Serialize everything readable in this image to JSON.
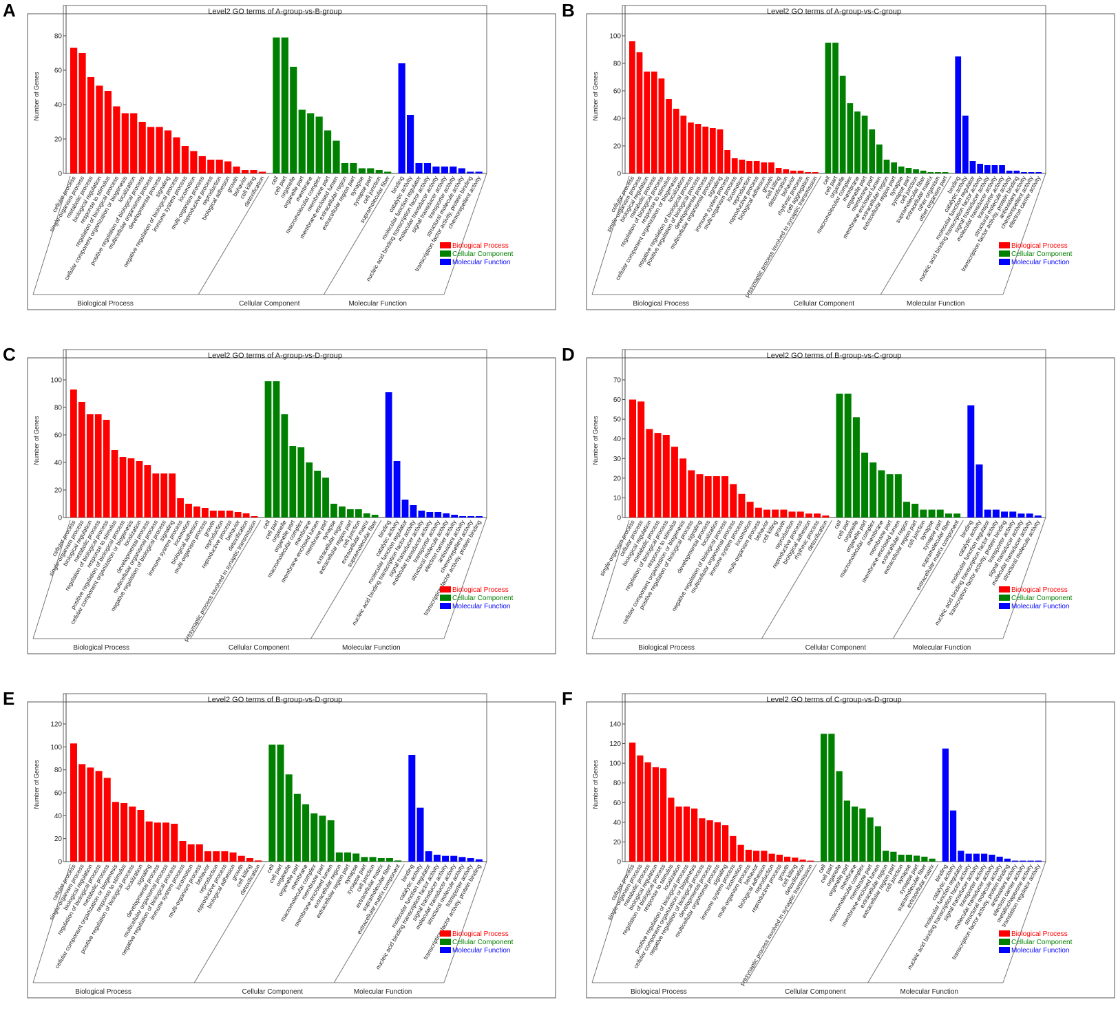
{
  "colors": {
    "bp": "#ff0000",
    "cc": "#008000",
    "mf": "#0000ff",
    "frame": "#555555"
  },
  "legend": [
    "Biological Process",
    "Cellular Component",
    "Molecular Function"
  ],
  "group_labels": [
    "Biological Process",
    "Cellular Component",
    "Molecular Function"
  ],
  "chart_data": [
    {
      "panel": "A",
      "type": "bar",
      "title": "Level2 GO terms of A-group-vs-B-group",
      "ylabel": "Number of Genes",
      "ylim": [
        0,
        80
      ],
      "yticks": [
        0,
        20,
        40,
        60,
        80
      ],
      "bp": {
        "categories": [
          "cellular process",
          "single-organism process",
          "metabolic process",
          "biological regulation",
          "response to stimulus",
          "regulation of biological process",
          "cellular component organization or biogenesis",
          "localization",
          "positive regulation of biological process",
          "multicellular organismal process",
          "developmental process",
          "signaling",
          "negative regulation of biological process",
          "immune system process",
          "locomotion",
          "multi-organism process",
          "reproductive process",
          "reproduction",
          "biological adhesion",
          "growth",
          "behavior",
          "cell killing",
          "detoxification"
        ],
        "values": [
          73,
          70,
          56,
          51,
          48,
          39,
          35,
          35,
          30,
          27,
          27,
          25,
          21,
          16,
          13,
          10,
          8,
          8,
          7,
          4,
          2,
          2,
          1
        ]
      },
      "cc": {
        "categories": [
          "cell",
          "cell part",
          "organelle",
          "organelle part",
          "membrane",
          "macromolecular complex",
          "membrane part",
          "membrane-enclosed lumen",
          "extracellular region",
          "extracellular region part",
          "synapse",
          "synapse part",
          "cell junction",
          "supramolecular fiber"
        ],
        "values": [
          79,
          79,
          62,
          37,
          35,
          33,
          25,
          19,
          6,
          6,
          3,
          3,
          2,
          1
        ]
      },
      "mf": {
        "categories": [
          "binding",
          "catalytic activity",
          "molecular function regulator",
          "nucleic acid binding transcription factor activity",
          "molecular transducer activity",
          "signal transducer activity",
          "transporter activity",
          "structural molecule activity",
          "transcription factor activity, protein binding",
          "chemorepellent activity"
        ],
        "values": [
          64,
          34,
          6,
          6,
          4,
          4,
          4,
          3,
          1,
          1
        ]
      }
    },
    {
      "panel": "B",
      "type": "bar",
      "title": "Level2 GO terms of A-group-vs-C-group",
      "ylabel": "Number of Genes",
      "ylim": [
        0,
        100
      ],
      "yticks": [
        0,
        20,
        40,
        60,
        80,
        100
      ],
      "bp": {
        "categories": [
          "cellular process",
          "single-organism process",
          "biological regulation",
          "metabolic process",
          "regulation of biological process",
          "response to stimulus",
          "cellular component organization or biogenesis",
          "localization",
          "negative regulation of biological process",
          "positive regulation of biological process",
          "developmental process",
          "multicellular organismal process",
          "signaling",
          "immune system process",
          "multi-organism process",
          "locomotion",
          "reproduction",
          "reproductive process",
          "biological adhesion",
          "growth",
          "cell killing",
          "detoxification",
          "behavior",
          "rhythmic process",
          "cell aggregation",
          "presynaptic process involved in synaptic transmission"
        ],
        "values": [
          96,
          88,
          74,
          74,
          69,
          54,
          47,
          42,
          37,
          36,
          34,
          33,
          32,
          17,
          11,
          10,
          9,
          9,
          8,
          8,
          4,
          3,
          2,
          2,
          1,
          1
        ]
      },
      "cc": {
        "categories": [
          "cell",
          "cell part",
          "organelle",
          "macromolecular complex",
          "membrane",
          "organelle part",
          "membrane part",
          "membrane-enclosed lumen",
          "extracellular region",
          "extracellular region part",
          "synapse",
          "synapse part",
          "cell junction",
          "supramolecular fiber",
          "extracellular matrix",
          "other organism",
          "other organism part"
        ],
        "values": [
          95,
          95,
          71,
          51,
          45,
          42,
          32,
          21,
          10,
          8,
          5,
          4,
          3,
          2,
          1,
          1,
          1
        ]
      },
      "mf": {
        "categories": [
          "binding",
          "catalytic activity",
          "molecular function regulator",
          "nucleic acid binding transcription factor activity",
          "signal transducer activity",
          "molecular transducer activity",
          "transporter activity",
          "structural molecule activity",
          "transcription factor activity, protein binding",
          "antioxidant activity",
          "chemorepellent activity",
          "electron carrier activity"
        ],
        "values": [
          85,
          42,
          9,
          7,
          6,
          6,
          6,
          2,
          2,
          1,
          1,
          1
        ]
      }
    },
    {
      "panel": "C",
      "type": "bar",
      "title": "Level2 GO terms of A-group-vs-D-group",
      "ylabel": "Number of Genes",
      "ylim": [
        0,
        100
      ],
      "yticks": [
        0,
        20,
        40,
        60,
        80,
        100
      ],
      "bp": {
        "categories": [
          "cellular process",
          "single-organism process",
          "biological regulation",
          "metabolic process",
          "regulation of biological process",
          "response to stimulus",
          "positive regulation of biological process",
          "cellular component organization or biogenesis",
          "localization",
          "developmental process",
          "multicellular organismal process",
          "negative regulation of biological process",
          "signaling",
          "immune system process",
          "locomotion",
          "biological adhesion",
          "multi-organism process",
          "growth",
          "reproduction",
          "reproductive process",
          "behavior",
          "detoxification",
          "presynaptic process involved in synaptic transmission"
        ],
        "values": [
          93,
          84,
          75,
          75,
          71,
          49,
          44,
          43,
          41,
          38,
          32,
          32,
          32,
          14,
          10,
          8,
          7,
          5,
          5,
          5,
          4,
          3,
          1
        ]
      },
      "cc": {
        "categories": [
          "cell",
          "cell part",
          "organelle",
          "organelle part",
          "macromolecular complex",
          "membrane",
          "membrane-enclosed lumen",
          "membrane part",
          "synapse",
          "extracellular region",
          "extracellular region part",
          "cell junction",
          "extracellular matrix",
          "supramolecular fiber"
        ],
        "values": [
          99,
          99,
          75,
          52,
          51,
          40,
          34,
          29,
          10,
          8,
          6,
          6,
          3,
          2
        ]
      },
      "mf": {
        "categories": [
          "binding",
          "catalytic activity",
          "molecular function regulator",
          "nucleic acid binding transcription factor activity",
          "signal transducer activity",
          "molecular transducer activity",
          "transporter activity",
          "structural molecule activity",
          "electron carrier activity",
          "antioxidant activity",
          "chemorepellent activity",
          "transcription factor activity, protein binding"
        ],
        "values": [
          91,
          41,
          13,
          9,
          5,
          4,
          4,
          3,
          2,
          1,
          1,
          1
        ]
      }
    },
    {
      "panel": "D",
      "type": "bar",
      "title": "Level2 GO terms of B-group-vs-C-group",
      "ylabel": "Number of Genes",
      "ylim": [
        0,
        70
      ],
      "yticks": [
        0,
        10,
        20,
        30,
        40,
        50,
        60,
        70
      ],
      "bp": {
        "categories": [
          "single-organism process",
          "cellular process",
          "biological regulation",
          "metabolic process",
          "regulation of biological process",
          "response to stimulus",
          "cellular component organization or biogenesis",
          "positive regulation of biological process",
          "signaling",
          "developmental process",
          "localization",
          "negative regulation of biological process",
          "multicellular organismal process",
          "immune system process",
          "locomotion",
          "multi-organism process",
          "behavior",
          "cell killing",
          "growth",
          "reproduction",
          "reproductive process",
          "biological adhesion",
          "rhythmic process",
          "detoxification"
        ],
        "values": [
          60,
          59,
          45,
          43,
          42,
          36,
          30,
          24,
          22,
          21,
          21,
          21,
          17,
          12,
          8,
          5,
          4,
          4,
          4,
          3,
          3,
          2,
          2,
          1
        ]
      },
      "cc": {
        "categories": [
          "cell",
          "cell part",
          "organelle",
          "organelle part",
          "macromolecular complex",
          "membrane",
          "membrane part",
          "membrane-enclosed lumen",
          "extracellular region",
          "extracellular region part",
          "cell junction",
          "synapse",
          "synapse part",
          "supramolecular fiber",
          "extracellular matrix component"
        ],
        "values": [
          63,
          63,
          51,
          33,
          28,
          24,
          22,
          22,
          8,
          7,
          4,
          4,
          4,
          2,
          2
        ]
      },
      "mf": {
        "categories": [
          "binding",
          "catalytic activity",
          "molecular function regulator",
          "nucleic acid binding transcription factor activity",
          "transcription factor activity, protein binding",
          "transporter activity",
          "signal transducer activity",
          "molecular transducer activity",
          "structural molecule activity"
        ],
        "values": [
          57,
          27,
          4,
          4,
          3,
          3,
          2,
          2,
          1
        ]
      }
    },
    {
      "panel": "E",
      "type": "bar",
      "title": "Level2 GO terms of B-group-vs-D-group",
      "ylabel": "Number of Genes",
      "ylim": [
        0,
        120
      ],
      "yticks": [
        0,
        20,
        40,
        60,
        80,
        100,
        120
      ],
      "bp": {
        "categories": [
          "cellular process",
          "single-organism process",
          "biological regulation",
          "regulation of biological process",
          "metabolic process",
          "cellular component organization or biogenesis",
          "response to stimulus",
          "positive regulation of biological process",
          "localization",
          "signaling",
          "developmental process",
          "multicellular organismal process",
          "negative regulation of biological process",
          "immune system process",
          "locomotion",
          "multi-organism process",
          "behavior",
          "reproduction",
          "reproductive process",
          "biological adhesion",
          "growth",
          "cell killing",
          "detoxification"
        ],
        "values": [
          103,
          85,
          82,
          79,
          73,
          52,
          51,
          48,
          45,
          35,
          34,
          34,
          33,
          18,
          15,
          15,
          9,
          9,
          9,
          8,
          5,
          3,
          1
        ]
      },
      "cc": {
        "categories": [
          "cell",
          "cell part",
          "organelle",
          "organelle part",
          "membrane",
          "macromolecular complex",
          "membrane part",
          "membrane-enclosed lumen",
          "extracellular region",
          "extracellular region part",
          "synapse",
          "synapse part",
          "cell junction",
          "extracellular matrix",
          "supramolecular fiber",
          "extracellular matrix component"
        ],
        "values": [
          102,
          102,
          76,
          59,
          50,
          42,
          40,
          36,
          8,
          8,
          7,
          4,
          4,
          3,
          3,
          1
        ]
      },
      "mf": {
        "categories": [
          "binding",
          "catalytic activity",
          "molecular function regulator",
          "nucleic acid binding transcription factor activity",
          "signal transducer activity",
          "molecular transducer activity",
          "structural molecule activity",
          "transporter activity",
          "transcription factor activity, protein binding"
        ],
        "values": [
          93,
          47,
          9,
          6,
          5,
          5,
          4,
          3,
          2
        ]
      }
    },
    {
      "panel": "F",
      "type": "bar",
      "title": "Level2 GO terms of C-group-vs-D-group",
      "ylabel": "Number of Genes",
      "ylim": [
        0,
        140
      ],
      "yticks": [
        0,
        20,
        40,
        60,
        80,
        100,
        120,
        140
      ],
      "bp": {
        "categories": [
          "cellular process",
          "single-organism process",
          "metabolic process",
          "biological regulation",
          "regulation of biological process",
          "response to stimulus",
          "localization",
          "positive regulation of biological process",
          "cellular component organization or biogenesis",
          "negative regulation of biological process",
          "developmental process",
          "multicellular organismal process",
          "signaling",
          "immune system process",
          "locomotion",
          "multi-organism process",
          "behavior",
          "biological adhesion",
          "reproduction",
          "reproductive process",
          "growth",
          "cell killing",
          "detoxification",
          "presynaptic process involved in synaptic transmission"
        ],
        "values": [
          121,
          108,
          101,
          96,
          95,
          65,
          56,
          56,
          54,
          44,
          42,
          40,
          37,
          26,
          17,
          12,
          11,
          11,
          8,
          7,
          5,
          4,
          2,
          1
        ]
      },
      "cc": {
        "categories": [
          "cell",
          "cell part",
          "organelle",
          "organelle part",
          "membrane",
          "macromolecular complex",
          "membrane part",
          "membrane-enclosed lumen",
          "extracellular region",
          "extracellular region part",
          "cell junction",
          "synapse",
          "synapse part",
          "supramolecular fiber",
          "extracellular matrix"
        ],
        "values": [
          130,
          130,
          92,
          62,
          56,
          54,
          45,
          36,
          11,
          10,
          7,
          7,
          6,
          5,
          3
        ]
      },
      "mf": {
        "categories": [
          "binding",
          "catalytic activity",
          "molecular function regulator",
          "nucleic acid binding transcription factor activity",
          "signal transducer activity",
          "transporter activity",
          "molecular transducer activity",
          "structural molecule activity",
          "transcription factor activity, protein binding",
          "antioxidant activity",
          "electron carrier activity",
          "metallochaperone activity",
          "translation regulator activity"
        ],
        "values": [
          115,
          52,
          11,
          8,
          8,
          8,
          7,
          5,
          3,
          1,
          1,
          1,
          1
        ]
      }
    }
  ]
}
